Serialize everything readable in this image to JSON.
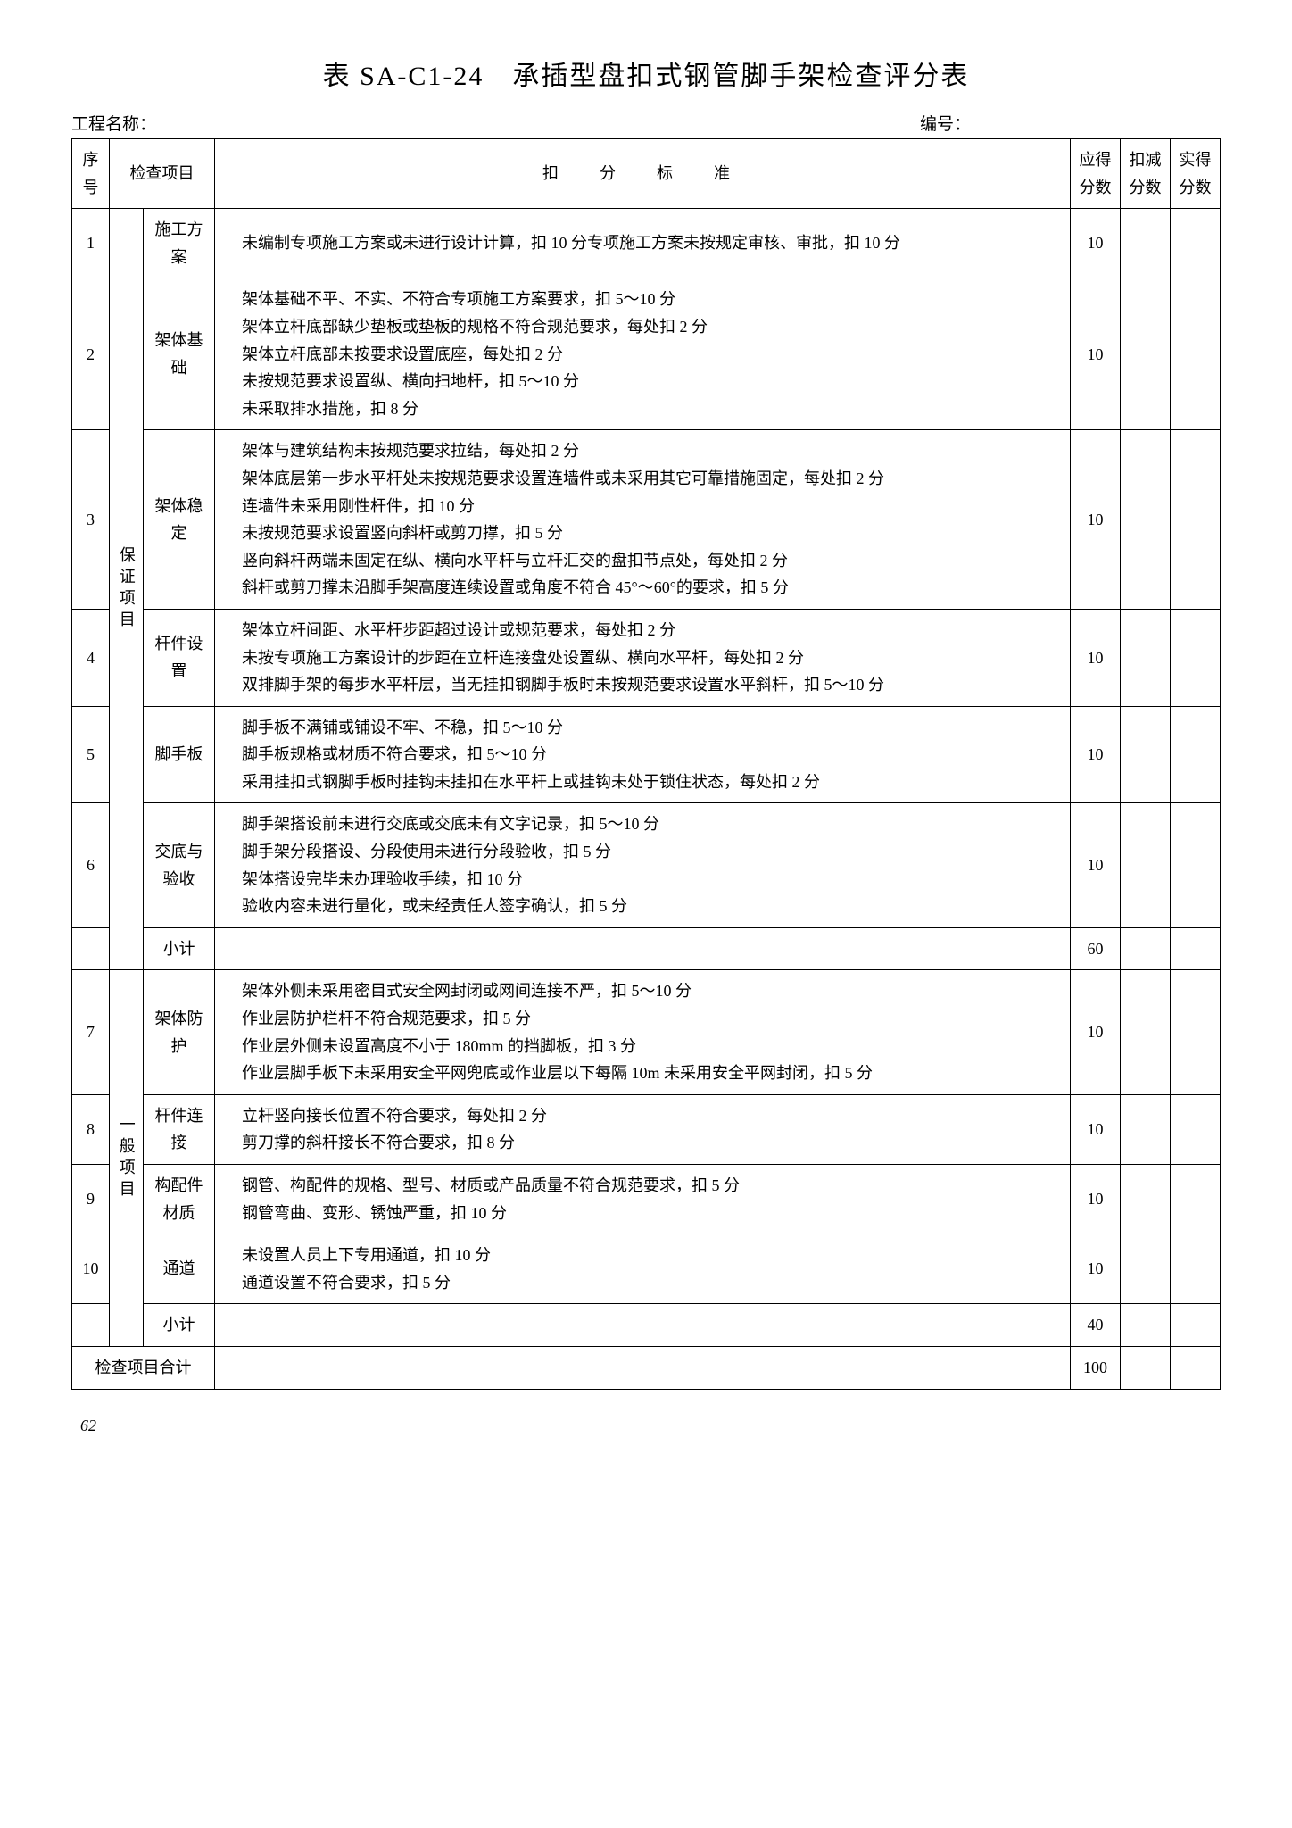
{
  "title": "表 SA-C1-24　承插型盘扣式钢管脚手架检查评分表",
  "project_label": "工程名称：",
  "number_label": "编号：",
  "columns": {
    "seq": "序号",
    "inspect": "检查项目",
    "criteria": "扣　分　标　准",
    "due": "应得分数",
    "deduct": "扣减分数",
    "actual": "实得分数"
  },
  "category_a": "保证项目",
  "category_b": "一般项目",
  "rows": [
    {
      "seq": "1",
      "item": "施工方案",
      "criteria": "未编制专项施工方案或未进行设计计算，扣 10 分专项施工方案未按规定审核、审批，扣 10 分",
      "score": "10"
    },
    {
      "seq": "2",
      "item": "架体基础",
      "criteria": "架体基础不平、不实、不符合专项施工方案要求，扣 5～10 分\n架体立杆底部缺少垫板或垫板的规格不符合规范要求，每处扣 2 分\n架体立杆底部未按要求设置底座，每处扣 2 分\n未按规范要求设置纵、横向扫地杆，扣 5～10 分\n未采取排水措施，扣 8 分",
      "score": "10"
    },
    {
      "seq": "3",
      "item": "架体稳定",
      "criteria": "架体与建筑结构未按规范要求拉结，每处扣 2 分\n架体底层第一步水平杆处未按规范要求设置连墙件或未采用其它可靠措施固定，每处扣 2 分\n连墙件未采用刚性杆件，扣 10 分\n未按规范要求设置竖向斜杆或剪刀撑，扣 5 分\n竖向斜杆两端未固定在纵、横向水平杆与立杆汇交的盘扣节点处，每处扣 2 分\n斜杆或剪刀撑未沿脚手架高度连续设置或角度不符合 45°～60°的要求，扣 5 分",
      "score": "10"
    },
    {
      "seq": "4",
      "item": "杆件设置",
      "criteria": "架体立杆间距、水平杆步距超过设计或规范要求，每处扣 2 分\n未按专项施工方案设计的步距在立杆连接盘处设置纵、横向水平杆，每处扣 2 分\n双排脚手架的每步水平杆层，当无挂扣钢脚手板时未按规范要求设置水平斜杆，扣 5～10 分",
      "score": "10"
    },
    {
      "seq": "5",
      "item": "脚手板",
      "criteria": "脚手板不满铺或铺设不牢、不稳，扣 5～10 分\n脚手板规格或材质不符合要求，扣 5～10 分\n采用挂扣式钢脚手板时挂钩未挂扣在水平杆上或挂钩未处于锁住状态，每处扣 2 分",
      "score": "10"
    },
    {
      "seq": "6",
      "item": "交底与验收",
      "criteria": "脚手架搭设前未进行交底或交底未有文字记录，扣 5～10 分\n脚手架分段搭设、分段使用未进行分段验收，扣 5 分\n架体搭设完毕未办理验收手续，扣 10 分\n验收内容未进行量化，或未经责任人签字确认，扣 5 分",
      "score": "10"
    }
  ],
  "subtotal_a_label": "小计",
  "subtotal_a_score": "60",
  "rows_b": [
    {
      "seq": "7",
      "item": "架体防护",
      "criteria": "架体外侧未采用密目式安全网封闭或网间连接不严，扣 5～10 分\n作业层防护栏杆不符合规范要求，扣 5 分\n作业层外侧未设置高度不小于 180mm 的挡脚板，扣 3 分\n作业层脚手板下未采用安全平网兜底或作业层以下每隔 10m 未采用安全平网封闭，扣 5 分",
      "score": "10"
    },
    {
      "seq": "8",
      "item": "杆件连接",
      "criteria": "立杆竖向接长位置不符合要求，每处扣 2 分\n剪刀撑的斜杆接长不符合要求，扣 8 分",
      "score": "10"
    },
    {
      "seq": "9",
      "item": "构配件材质",
      "criteria": "钢管、构配件的规格、型号、材质或产品质量不符合规范要求，扣 5 分\n钢管弯曲、变形、锈蚀严重，扣 10 分",
      "score": "10"
    },
    {
      "seq": "10",
      "item": "通道",
      "criteria": "未设置人员上下专用通道，扣 10 分\n通道设置不符合要求，扣 5 分",
      "score": "10"
    }
  ],
  "subtotal_b_label": "小计",
  "subtotal_b_score": "40",
  "total_label": "检查项目合计",
  "total_score": "100",
  "page_number": "62"
}
